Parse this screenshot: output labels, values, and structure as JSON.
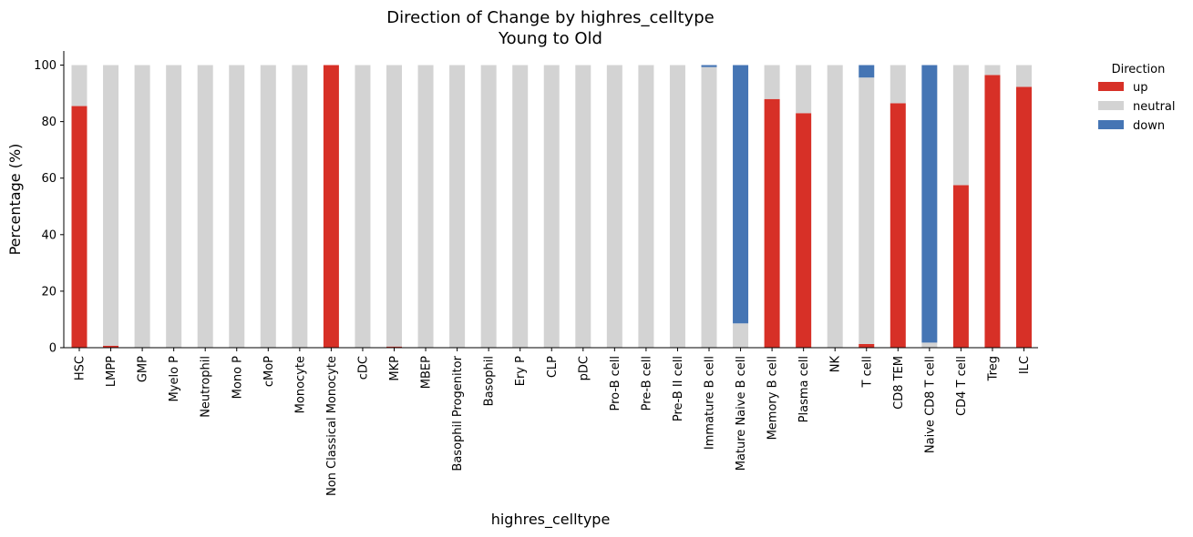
{
  "chart_data": {
    "type": "bar",
    "stacked": true,
    "title": "Direction of Change by highres_celltype",
    "subtitle": "Young to Old",
    "xlabel": "highres_celltype",
    "ylabel": "Percentage (%)",
    "ylim": [
      0,
      105
    ],
    "yticks": [
      "0",
      "20",
      "40",
      "60",
      "80",
      "100"
    ],
    "grid": false,
    "legend": {
      "title": "Direction",
      "placement": "top-right-outside"
    },
    "categories": [
      "HSC",
      "LMPP",
      "GMP",
      "Myelo P",
      "Neutrophil",
      "Mono P",
      "cMoP",
      "Monocyte",
      "Non Classical Monocyte",
      "cDC",
      "MKP",
      "MBEP",
      "Basophil Progenitor",
      "Basophil",
      "Ery P",
      "CLP",
      "pDC",
      "Pro-B cell",
      "Pre-B cell",
      "Pre-B II cell",
      "Immature B cell",
      "Mature Naive B cell",
      "Memory B cell",
      "Plasma cell",
      "NK",
      "T cell",
      "CD8 TEM",
      "Naive CD8 T cell",
      "CD4 T cell",
      "Treg",
      "ILC"
    ],
    "series": [
      {
        "name": "up",
        "color": "#d73027",
        "values": [
          85.5,
          0.7,
          0,
          0,
          0,
          0,
          0,
          0,
          100,
          0,
          0.4,
          0,
          0,
          0,
          0,
          0,
          0,
          0,
          0,
          0,
          0,
          0,
          88,
          83,
          0,
          1.3,
          86.5,
          0,
          57.5,
          96.5,
          92.3
        ]
      },
      {
        "name": "neutral",
        "color": "#d3d3d3",
        "values": [
          14.5,
          99.3,
          100,
          100,
          100,
          100,
          100,
          100,
          0,
          100,
          99.6,
          100,
          100,
          100,
          100,
          100,
          100,
          100,
          100,
          100,
          99.3,
          8.6,
          12,
          17,
          100,
          94.3,
          13.5,
          1.8,
          42.5,
          3.5,
          7.7
        ]
      },
      {
        "name": "down",
        "color": "#4575b4",
        "values": [
          0,
          0,
          0,
          0,
          0,
          0,
          0,
          0,
          0,
          0,
          0,
          0,
          0,
          0,
          0,
          0,
          0,
          0,
          0,
          0,
          0.7,
          91.4,
          0,
          0,
          0,
          4.4,
          0,
          98.2,
          0,
          0,
          0
        ]
      }
    ]
  }
}
